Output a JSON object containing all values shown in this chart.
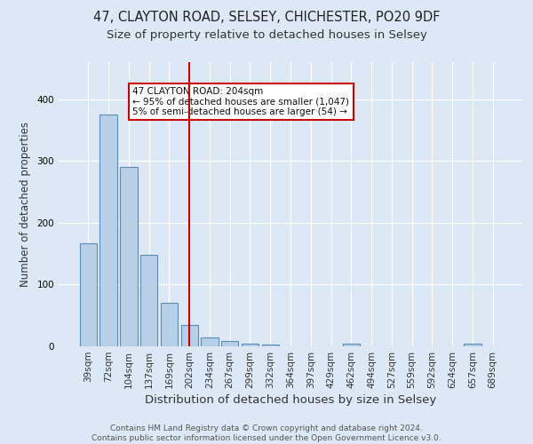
{
  "title1": "47, CLAYTON ROAD, SELSEY, CHICHESTER, PO20 9DF",
  "title2": "Size of property relative to detached houses in Selsey",
  "xlabel": "Distribution of detached houses by size in Selsey",
  "ylabel": "Number of detached properties",
  "bar_labels": [
    "39sqm",
    "72sqm",
    "104sqm",
    "137sqm",
    "169sqm",
    "202sqm",
    "234sqm",
    "267sqm",
    "299sqm",
    "332sqm",
    "364sqm",
    "397sqm",
    "429sqm",
    "462sqm",
    "494sqm",
    "527sqm",
    "559sqm",
    "592sqm",
    "624sqm",
    "657sqm",
    "689sqm"
  ],
  "bar_values": [
    167,
    375,
    290,
    148,
    70,
    35,
    15,
    8,
    5,
    3,
    0,
    0,
    0,
    4,
    0,
    0,
    0,
    0,
    0,
    4,
    0
  ],
  "bar_color": "#b8cfe8",
  "bar_edge_color": "#5b8db8",
  "background_color": "#dce8f5",
  "grid_color": "#ffffff",
  "vline_color": "#cc0000",
  "annotation_text": "47 CLAYTON ROAD: 204sqm\n← 95% of detached houses are smaller (1,047)\n5% of semi-detached houses are larger (54) →",
  "annotation_box_color": "#ffffff",
  "annotation_box_edge": "#cc0000",
  "footer_text": "Contains HM Land Registry data © Crown copyright and database right 2024.\nContains public sector information licensed under the Open Government Licence v3.0.",
  "ylim": [
    0,
    460
  ],
  "title1_fontsize": 10.5,
  "title2_fontsize": 9.5,
  "xlabel_fontsize": 9.5,
  "ylabel_fontsize": 8.5,
  "tick_fontsize": 7.5,
  "annotation_fontsize": 7.5,
  "footer_fontsize": 6.5
}
